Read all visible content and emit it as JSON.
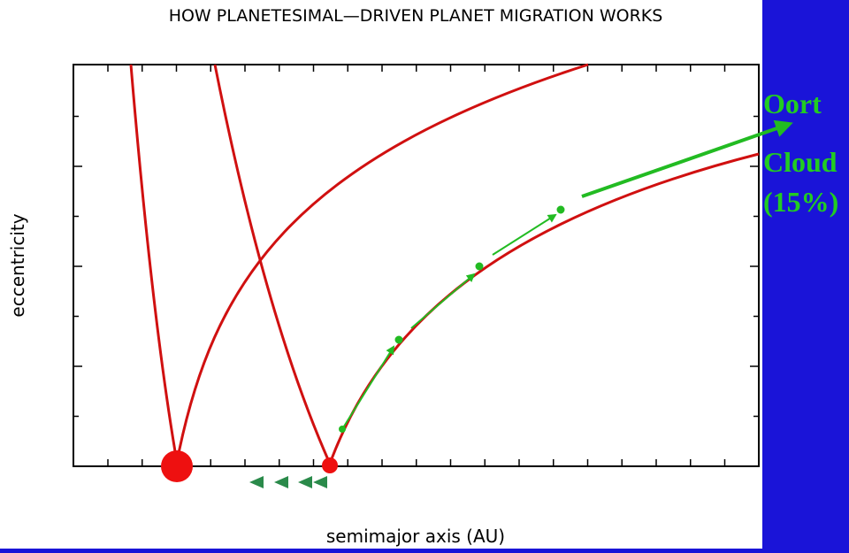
{
  "header": {
    "title": "HOW PLANETESIMAL—DRIVEN PLANET MIGRATION WORKS"
  },
  "axes": {
    "x_label": "semimajor axis (AU)",
    "y_label": "eccentricity"
  },
  "annotation": {
    "lines": [
      "Oort",
      "Cloud",
      "(15%)"
    ]
  }
}
